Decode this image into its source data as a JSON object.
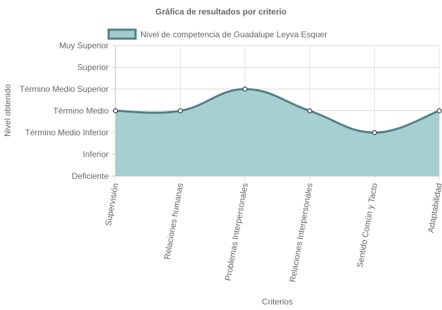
{
  "chart_data": {
    "type": "area",
    "title": "Gráfica de resultados por criterio",
    "xlabel": "Criterios",
    "ylabel": "Nivel obtenido",
    "categories": [
      "Supervisión",
      "Relaciones humanas",
      "Problemas Interpersonales",
      "Relaciones Interpersonales",
      "Sentido Común y Tacto",
      "Adaptabilidad"
    ],
    "y_levels": [
      "Deficiente",
      "Inferior",
      "Término Medio Inferior",
      "Término Medio",
      "Término Medio Superior",
      "Superior",
      "Muy Superior"
    ],
    "series": [
      {
        "name": "Nivel de competencia de Guadalupe Leyva Esquer",
        "values": [
          4,
          4,
          5,
          4,
          3,
          4
        ],
        "value_labels": [
          "Término Medio",
          "Término Medio",
          "Término Medio Superior",
          "Término Medio",
          "Término Medio Inferior",
          "Término Medio"
        ],
        "line_color": "#4f7f86",
        "fill_color": "#a1cccf"
      }
    ],
    "ylim": [
      1,
      7
    ],
    "grid": true,
    "legend_position": "top"
  }
}
